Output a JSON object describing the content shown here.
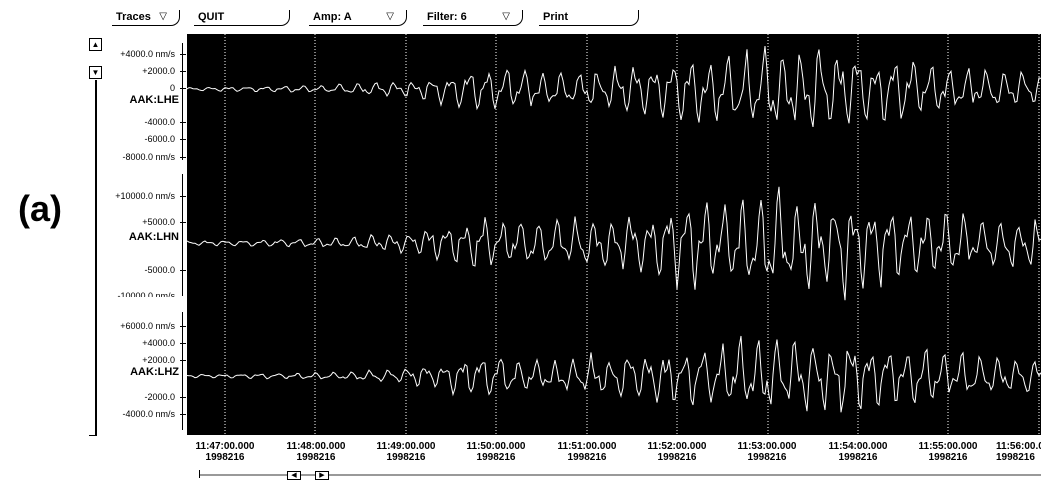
{
  "toolbar": {
    "traces_label": "Traces",
    "quit_label": "QUIT",
    "amp_label": "Amp: A",
    "filter_label": "Filter: 6",
    "print_label": "Print"
  },
  "panel_label": "(a)",
  "channels": [
    {
      "name": "AAK:LHE",
      "axis_labels": [
        "+4000.0 nm/s",
        "+2000.0",
        "0",
        "-4000.0",
        "-6000.0",
        "-8000.0 nm/s"
      ]
    },
    {
      "name": "AAK:LHN",
      "axis_labels": [
        "+10000.0 nm/s",
        "+5000.0",
        "-5000.0",
        "-10000.0 nm/s"
      ]
    },
    {
      "name": "AAK:LHZ",
      "axis_labels": [
        "+6000.0 nm/s",
        "+4000.0",
        "+2000.0",
        "-2000.0",
        "-4000.0 nm/s"
      ]
    }
  ],
  "time_axis": {
    "times": [
      "11:47:00.000",
      "11:48:00.000",
      "11:49:00.000",
      "11:50:00.000",
      "11:51:00.000",
      "11:52:00.000",
      "11:53:00.000",
      "11:54:00.000",
      "11:55:00.000",
      "11:56:00.000"
    ],
    "date": "1998216"
  },
  "colors": {
    "trace": "#ffffff",
    "plot_bg": "#000000",
    "grid": "#ffffff"
  }
}
